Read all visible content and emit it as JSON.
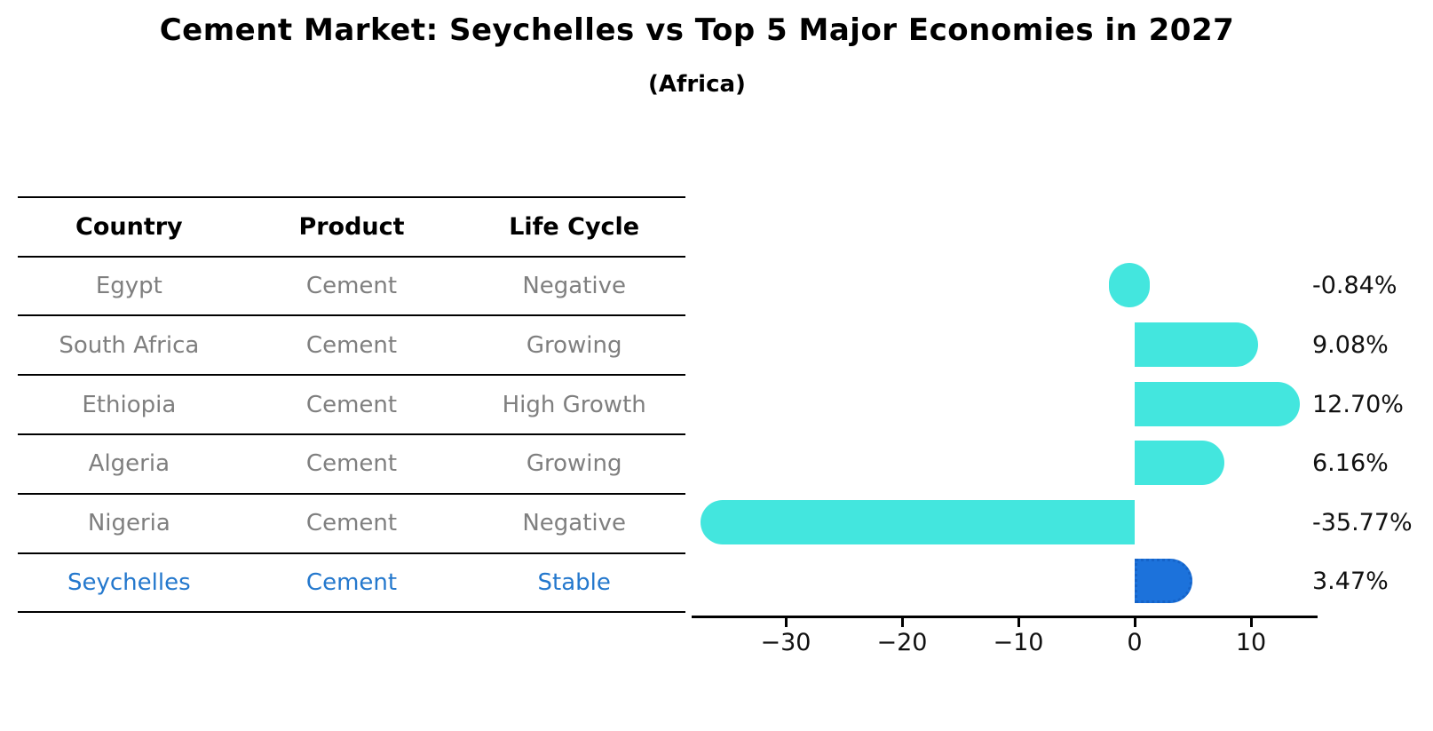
{
  "title": "Cement Market: Seychelles vs Top 5 Major Economies in 2027",
  "subtitle": "(Africa)",
  "colors": {
    "bar_cyan": "#43E6DE",
    "bar_highlight_blue": "#1C72DB",
    "bar_highlight_border": "#1563c8",
    "highlight_text_blue": "#2478cd",
    "table_text_gray": "#7f7f7f",
    "axis_black": "#000000"
  },
  "table": {
    "headers": [
      "Country",
      "Product",
      "Life Cycle"
    ],
    "rows": [
      {
        "country": "Egypt",
        "product": "Cement",
        "life_cycle": "Negative",
        "highlight": false
      },
      {
        "country": "South Africa",
        "product": "Cement",
        "life_cycle": "Growing",
        "highlight": false
      },
      {
        "country": "Ethiopia",
        "product": "Cement",
        "life_cycle": "High Growth",
        "highlight": false
      },
      {
        "country": "Algeria",
        "product": "Cement",
        "life_cycle": "Growing",
        "highlight": false
      },
      {
        "country": "Nigeria",
        "product": "Cement",
        "life_cycle": "Negative",
        "highlight": false
      },
      {
        "country": "Seychelles",
        "product": "Cement",
        "life_cycle": "Stable",
        "highlight": true
      }
    ]
  },
  "chart_data": {
    "type": "bar",
    "orientation": "horizontal",
    "title": "Cement Market: Seychelles vs Top 5 Major Economies in 2027 (Africa)",
    "categories": [
      "Egypt",
      "South Africa",
      "Ethiopia",
      "Algeria",
      "Nigeria",
      "Seychelles"
    ],
    "values": [
      -0.84,
      9.08,
      12.7,
      6.16,
      -35.77,
      3.47
    ],
    "value_labels": [
      "-0.84%",
      "9.08%",
      "12.70%",
      "6.16%",
      "-35.77%",
      "3.47%"
    ],
    "unit": "percent",
    "highlight_index": 5,
    "xlim": [
      -38.1,
      15.7
    ],
    "x_ticks": [
      -30,
      -20,
      -10,
      0,
      10
    ],
    "x_tick_labels": [
      "−30",
      "−20",
      "−10",
      "0",
      "10"
    ],
    "grid": false,
    "legend": false
  }
}
